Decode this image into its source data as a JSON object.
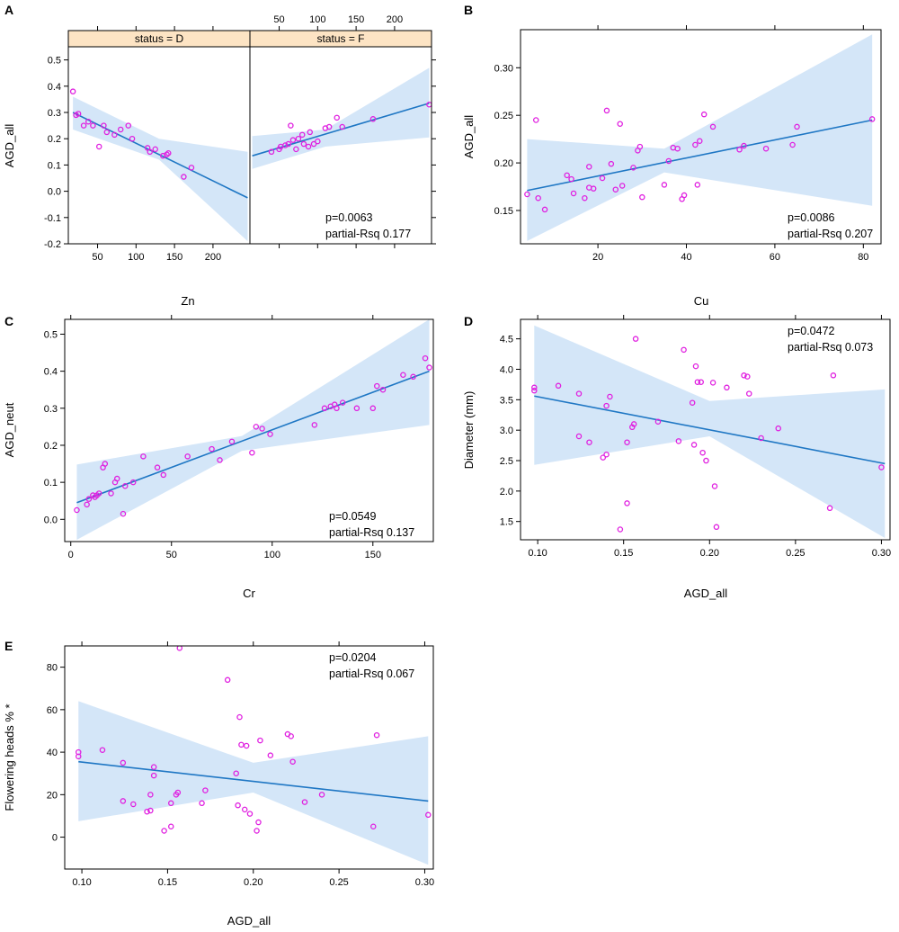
{
  "figure": {
    "colors": {
      "point": "#e020e0",
      "line": "#1f77c4",
      "band": "#d4e6f8",
      "strip": "#fde4c4",
      "axis": "#000000"
    }
  },
  "chart_data": [
    {
      "panel": "A",
      "type": "scatter",
      "xlabel": "Zn",
      "ylabel": "AGD_all",
      "ylim": [
        -0.2,
        0.55
      ],
      "yticks": [
        -0.2,
        -0.1,
        0.0,
        0.1,
        0.2,
        0.3,
        0.4,
        0.5
      ],
      "ytick_labels": [
        "-0.2",
        "-0.1",
        "0.0",
        "0.1",
        "0.2",
        "0.3",
        "0.4",
        "0.5"
      ],
      "annotation": [
        "p=0.0063",
        "partial-Rsq 0.177"
      ],
      "facets": [
        {
          "strip": "status = D",
          "xlim": [
            12,
            248
          ],
          "xticks": [
            50,
            100,
            150,
            200
          ],
          "xtick_labels": [
            "50",
            "100",
            "150",
            "200"
          ],
          "xtick_side": "bottom",
          "points": [
            [
              18,
              0.38
            ],
            [
              22,
              0.29
            ],
            [
              25,
              0.295
            ],
            [
              32,
              0.25
            ],
            [
              38,
              0.265
            ],
            [
              44,
              0.25
            ],
            [
              52,
              0.17
            ],
            [
              58,
              0.25
            ],
            [
              62,
              0.225
            ],
            [
              72,
              0.215
            ],
            [
              80,
              0.235
            ],
            [
              90,
              0.25
            ],
            [
              95,
              0.2
            ],
            [
              115,
              0.165
            ],
            [
              118,
              0.15
            ],
            [
              125,
              0.16
            ],
            [
              135,
              0.135
            ],
            [
              140,
              0.14
            ],
            [
              142,
              0.145
            ],
            [
              162,
              0.055
            ],
            [
              172,
              0.09
            ]
          ],
          "fit": {
            "x": [
              18,
              245
            ],
            "y": [
              0.3,
              -0.025
            ]
          },
          "band": {
            "x": [
              18,
              130,
              245
            ],
            "lower": [
              0.235,
              0.12,
              -0.19
            ],
            "upper": [
              0.36,
              0.2,
              0.15
            ]
          }
        },
        {
          "strip": "status = F",
          "xlim": [
            12,
            248
          ],
          "xticks": [
            50,
            100,
            150,
            200
          ],
          "xtick_labels": [
            "50",
            "100",
            "150",
            "200"
          ],
          "xtick_side": "top",
          "points": [
            [
              40,
              0.15
            ],
            [
              50,
              0.16
            ],
            [
              52,
              0.17
            ],
            [
              58,
              0.175
            ],
            [
              62,
              0.18
            ],
            [
              65,
              0.25
            ],
            [
              68,
              0.195
            ],
            [
              72,
              0.16
            ],
            [
              75,
              0.2
            ],
            [
              80,
              0.215
            ],
            [
              82,
              0.18
            ],
            [
              88,
              0.17
            ],
            [
              90,
              0.225
            ],
            [
              95,
              0.18
            ],
            [
              100,
              0.19
            ],
            [
              110,
              0.24
            ],
            [
              115,
              0.245
            ],
            [
              125,
              0.28
            ],
            [
              132,
              0.245
            ],
            [
              172,
              0.275
            ],
            [
              245,
              0.33
            ]
          ],
          "fit": {
            "x": [
              15,
              245
            ],
            "y": [
              0.135,
              0.335
            ]
          },
          "band": {
            "x": [
              15,
              110,
              245
            ],
            "lower": [
              0.085,
              0.17,
              0.205
            ],
            "upper": [
              0.21,
              0.235,
              0.47
            ]
          }
        }
      ]
    },
    {
      "panel": "B",
      "type": "scatter",
      "xlabel": "Cu",
      "ylabel": "AGD_all",
      "xlim": [
        2.5,
        84
      ],
      "ylim": [
        0.115,
        0.34
      ],
      "xticks": [
        20,
        40,
        60,
        80
      ],
      "xtick_labels": [
        "20",
        "40",
        "60",
        "80"
      ],
      "yticks": [
        0.15,
        0.2,
        0.25,
        0.3
      ],
      "ytick_labels": [
        "0.15",
        "0.20",
        "0.25",
        "0.30"
      ],
      "annotation": [
        "p=0.0086",
        "partial-Rsq 0.207"
      ],
      "points": [
        [
          4,
          0.167
        ],
        [
          6,
          0.245
        ],
        [
          6.5,
          0.163
        ],
        [
          8,
          0.151
        ],
        [
          13,
          0.187
        ],
        [
          14,
          0.183
        ],
        [
          14.5,
          0.168
        ],
        [
          17,
          0.163
        ],
        [
          18,
          0.174
        ],
        [
          18,
          0.196
        ],
        [
          19,
          0.173
        ],
        [
          21,
          0.184
        ],
        [
          22,
          0.255
        ],
        [
          23,
          0.199
        ],
        [
          24,
          0.172
        ],
        [
          25,
          0.241
        ],
        [
          25.5,
          0.176
        ],
        [
          28,
          0.195
        ],
        [
          29,
          0.213
        ],
        [
          29.5,
          0.217
        ],
        [
          30,
          0.164
        ],
        [
          35,
          0.177
        ],
        [
          36,
          0.202
        ],
        [
          37,
          0.216
        ],
        [
          38,
          0.215
        ],
        [
          39,
          0.162
        ],
        [
          39.5,
          0.166
        ],
        [
          42,
          0.219
        ],
        [
          42.5,
          0.177
        ],
        [
          43,
          0.223
        ],
        [
          44,
          0.251
        ],
        [
          46,
          0.238
        ],
        [
          52,
          0.214
        ],
        [
          53,
          0.218
        ],
        [
          58,
          0.215
        ],
        [
          64,
          0.219
        ],
        [
          65,
          0.238
        ],
        [
          82,
          0.246
        ]
      ],
      "fit": {
        "x": [
          4,
          82
        ],
        "y": [
          0.171,
          0.245
        ]
      },
      "band": {
        "x": [
          4,
          35,
          82
        ],
        "lower": [
          0.118,
          0.19,
          0.155
        ],
        "upper": [
          0.225,
          0.215,
          0.335
        ]
      }
    },
    {
      "panel": "C",
      "type": "scatter",
      "xlabel": "Cr",
      "ylabel": "AGD_neut",
      "xlim": [
        -3,
        180
      ],
      "ylim": [
        -0.06,
        0.54
      ],
      "xticks": [
        0,
        50,
        100,
        150
      ],
      "xtick_labels": [
        "0",
        "50",
        "100",
        "150"
      ],
      "yticks": [
        0.0,
        0.1,
        0.2,
        0.3,
        0.4,
        0.5
      ],
      "ytick_labels": [
        "0.0",
        "0.1",
        "0.2",
        "0.3",
        "0.4",
        "0.5"
      ],
      "annotation": [
        "p=0.0549",
        "partial-Rsq 0.137"
      ],
      "points": [
        [
          3,
          0.025
        ],
        [
          8,
          0.04
        ],
        [
          9,
          0.055
        ],
        [
          11,
          0.065
        ],
        [
          12,
          0.06
        ],
        [
          13,
          0.065
        ],
        [
          14,
          0.07
        ],
        [
          16,
          0.14
        ],
        [
          17,
          0.15
        ],
        [
          20,
          0.07
        ],
        [
          22,
          0.1
        ],
        [
          23,
          0.11
        ],
        [
          26,
          0.015
        ],
        [
          27,
          0.09
        ],
        [
          31,
          0.1
        ],
        [
          36,
          0.17
        ],
        [
          43,
          0.14
        ],
        [
          46,
          0.12
        ],
        [
          58,
          0.17
        ],
        [
          70,
          0.19
        ],
        [
          74,
          0.16
        ],
        [
          80,
          0.21
        ],
        [
          90,
          0.18
        ],
        [
          92,
          0.25
        ],
        [
          95,
          0.245
        ],
        [
          99,
          0.23
        ],
        [
          121,
          0.255
        ],
        [
          126,
          0.3
        ],
        [
          129,
          0.305
        ],
        [
          131,
          0.31
        ],
        [
          132,
          0.3
        ],
        [
          135,
          0.315
        ],
        [
          142,
          0.3
        ],
        [
          150,
          0.3
        ],
        [
          152,
          0.36
        ],
        [
          155,
          0.35
        ],
        [
          165,
          0.39
        ],
        [
          170,
          0.385
        ],
        [
          176,
          0.435
        ],
        [
          178,
          0.41
        ]
      ],
      "fit": {
        "x": [
          3,
          178
        ],
        "y": [
          0.045,
          0.4
        ]
      },
      "band": {
        "x": [
          3,
          85,
          178
        ],
        "lower": [
          -0.055,
          0.185,
          0.255
        ],
        "upper": [
          0.148,
          0.225,
          0.54
        ]
      }
    },
    {
      "panel": "D",
      "type": "scatter",
      "xlabel": "AGD_all",
      "ylabel": "Diameter (mm)",
      "xlim": [
        0.09,
        0.305
      ],
      "ylim": [
        1.2,
        4.82
      ],
      "xticks": [
        0.1,
        0.15,
        0.2,
        0.25,
        0.3
      ],
      "xtick_labels": [
        "0.10",
        "0.15",
        "0.20",
        "0.25",
        "0.30"
      ],
      "yticks": [
        1.5,
        2.0,
        2.5,
        3.0,
        3.5,
        4.0,
        4.5
      ],
      "ytick_labels": [
        "1.5",
        "2.0",
        "2.5",
        "3.0",
        "3.5",
        "4.0",
        "4.5"
      ],
      "annotation": [
        "p=0.0472",
        "partial-Rsq 0.073"
      ],
      "points": [
        [
          0.098,
          3.7
        ],
        [
          0.098,
          3.65
        ],
        [
          0.112,
          3.73
        ],
        [
          0.124,
          3.6
        ],
        [
          0.124,
          2.9
        ],
        [
          0.13,
          2.8
        ],
        [
          0.138,
          2.55
        ],
        [
          0.14,
          2.6
        ],
        [
          0.14,
          3.4
        ],
        [
          0.142,
          3.55
        ],
        [
          0.148,
          1.37
        ],
        [
          0.152,
          1.8
        ],
        [
          0.152,
          2.8
        ],
        [
          0.155,
          3.05
        ],
        [
          0.156,
          3.1
        ],
        [
          0.157,
          4.5
        ],
        [
          0.17,
          3.14
        ],
        [
          0.182,
          2.82
        ],
        [
          0.185,
          4.32
        ],
        [
          0.19,
          3.45
        ],
        [
          0.191,
          2.76
        ],
        [
          0.192,
          4.05
        ],
        [
          0.193,
          3.79
        ],
        [
          0.195,
          3.79
        ],
        [
          0.196,
          2.63
        ],
        [
          0.198,
          2.5
        ],
        [
          0.202,
          3.78
        ],
        [
          0.203,
          2.08
        ],
        [
          0.204,
          1.41
        ],
        [
          0.21,
          3.7
        ],
        [
          0.22,
          3.9
        ],
        [
          0.222,
          3.88
        ],
        [
          0.223,
          3.6
        ],
        [
          0.23,
          2.87
        ],
        [
          0.24,
          3.03
        ],
        [
          0.27,
          1.72
        ],
        [
          0.272,
          3.9
        ],
        [
          0.3,
          2.39
        ]
      ],
      "fit": {
        "x": [
          0.098,
          0.302
        ],
        "y": [
          3.56,
          2.45
        ]
      },
      "band": {
        "x": [
          0.098,
          0.2,
          0.302
        ],
        "lower": [
          2.43,
          2.9,
          1.23
        ],
        "upper": [
          4.72,
          3.48,
          3.67
        ]
      }
    },
    {
      "panel": "E",
      "type": "scatter",
      "xlabel": "AGD_all",
      "ylabel": "Flowering heads % *",
      "xlim": [
        0.09,
        0.305
      ],
      "ylim": [
        -15,
        90
      ],
      "xticks": [
        0.1,
        0.15,
        0.2,
        0.25,
        0.3
      ],
      "xtick_labels": [
        "0.10",
        "0.15",
        "0.20",
        "0.25",
        "0.30"
      ],
      "yticks": [
        0,
        20,
        40,
        60,
        80
      ],
      "ytick_labels": [
        "0",
        "20",
        "40",
        "60",
        "80"
      ],
      "annotation": [
        "p=0.0204",
        "partial-Rsq 0.067"
      ],
      "points": [
        [
          0.098,
          40
        ],
        [
          0.098,
          38
        ],
        [
          0.112,
          41
        ],
        [
          0.124,
          35
        ],
        [
          0.124,
          17
        ],
        [
          0.13,
          15.5
        ],
        [
          0.138,
          12
        ],
        [
          0.14,
          12.5
        ],
        [
          0.14,
          20
        ],
        [
          0.142,
          29
        ],
        [
          0.142,
          33
        ],
        [
          0.148,
          3
        ],
        [
          0.152,
          5
        ],
        [
          0.152,
          16
        ],
        [
          0.155,
          20
        ],
        [
          0.156,
          21
        ],
        [
          0.157,
          89
        ],
        [
          0.17,
          16
        ],
        [
          0.172,
          22
        ],
        [
          0.185,
          74
        ],
        [
          0.19,
          30
        ],
        [
          0.191,
          15
        ],
        [
          0.192,
          56.5
        ],
        [
          0.193,
          43.5
        ],
        [
          0.195,
          13
        ],
        [
          0.196,
          43
        ],
        [
          0.198,
          11
        ],
        [
          0.202,
          3
        ],
        [
          0.203,
          7
        ],
        [
          0.204,
          45.5
        ],
        [
          0.21,
          38.5
        ],
        [
          0.22,
          48.5
        ],
        [
          0.222,
          47.5
        ],
        [
          0.223,
          35.5
        ],
        [
          0.23,
          16.5
        ],
        [
          0.24,
          20
        ],
        [
          0.27,
          5
        ],
        [
          0.272,
          48
        ],
        [
          0.302,
          10.5
        ]
      ],
      "fit": {
        "x": [
          0.098,
          0.302
        ],
        "y": [
          35.5,
          17
        ]
      },
      "band": {
        "x": [
          0.098,
          0.2,
          0.302
        ],
        "lower": [
          7.5,
          21,
          -13
        ],
        "upper": [
          64,
          35,
          47.5
        ]
      }
    }
  ]
}
